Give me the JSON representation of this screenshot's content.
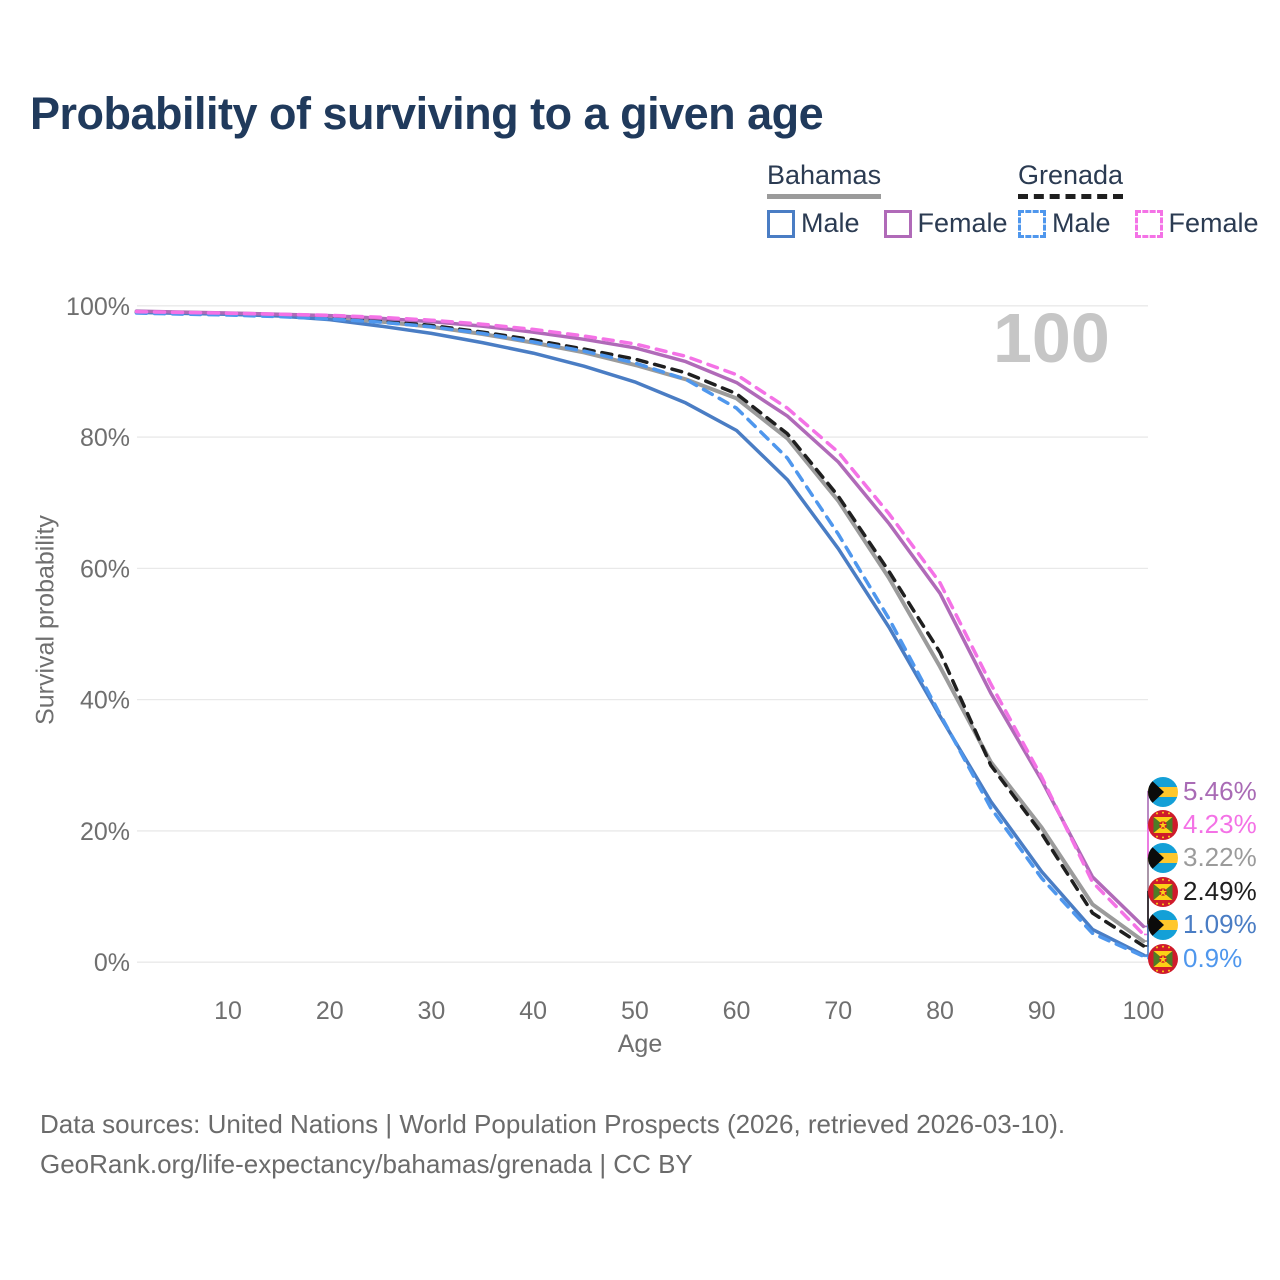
{
  "title": "Probability of surviving to a given age",
  "watermark": "100",
  "legend": {
    "groups": [
      {
        "country": "Bahamas",
        "line_style": "solid",
        "line_color": "#9b9b9b",
        "items": [
          {
            "label": "Male",
            "color": "#4a7dc4"
          },
          {
            "label": "Female",
            "color": "#b06ab8"
          }
        ]
      },
      {
        "country": "Grenada",
        "line_style": "dashed",
        "line_color": "#1f1f1f",
        "items": [
          {
            "label": "Male",
            "color": "#4f97ed"
          },
          {
            "label": "Female",
            "color": "#f472e6"
          }
        ]
      }
    ]
  },
  "chart_data": {
    "type": "line",
    "title": "Probability of surviving to a given age",
    "xlabel": "Age",
    "ylabel": "Survival probability",
    "xlim": [
      0,
      100
    ],
    "ylim": [
      0,
      100
    ],
    "grid": "horizontal",
    "x_ticks": [
      10,
      20,
      30,
      40,
      50,
      60,
      70,
      80,
      90,
      100
    ],
    "y_ticks": [
      0,
      20,
      40,
      60,
      80,
      100
    ],
    "y_tick_labels": [
      "0%",
      "20%",
      "40%",
      "60%",
      "80%",
      "100%"
    ],
    "x": [
      1,
      5,
      10,
      15,
      20,
      25,
      30,
      35,
      40,
      45,
      50,
      55,
      60,
      65,
      70,
      75,
      80,
      85,
      90,
      95,
      100
    ],
    "series": [
      {
        "key": "bahamas_total",
        "name": "Bahamas",
        "color": "#9b9b9b",
        "dashed": false,
        "width": 4,
        "values": [
          99.1,
          98.95,
          98.8,
          98.55,
          98.2,
          97.6,
          96.8,
          95.7,
          94.4,
          92.9,
          91.0,
          88.8,
          85.9,
          79.8,
          70.3,
          58.5,
          45.0,
          30.5,
          20.5,
          8.8,
          3.22
        ]
      },
      {
        "key": "grenada_total",
        "name": "Grenada",
        "color": "#1f1f1f",
        "dashed": true,
        "width": 3.5,
        "values": [
          99.0,
          98.85,
          98.7,
          98.5,
          98.25,
          97.8,
          97.0,
          96.0,
          94.8,
          93.4,
          91.9,
          89.8,
          86.6,
          80.5,
          71.0,
          59.5,
          47.2,
          30.0,
          19.6,
          7.5,
          2.49
        ]
      },
      {
        "key": "bahamas_male",
        "name": "Bahamas Male",
        "color": "#4a7dc4",
        "dashed": false,
        "width": 3.5,
        "values": [
          99.0,
          98.85,
          98.7,
          98.45,
          97.9,
          96.9,
          95.8,
          94.4,
          92.8,
          90.8,
          88.4,
          85.2,
          81.0,
          73.5,
          63.0,
          51.0,
          37.5,
          24.5,
          13.8,
          5.0,
          1.09
        ]
      },
      {
        "key": "grenada_male",
        "name": "Grenada Male",
        "color": "#4f97ed",
        "dashed": true,
        "width": 3.5,
        "values": [
          98.9,
          98.75,
          98.6,
          98.35,
          98.0,
          97.5,
          96.8,
          95.8,
          94.5,
          93.1,
          91.3,
          88.8,
          84.4,
          76.8,
          65.2,
          52.3,
          37.8,
          23.5,
          12.8,
          4.4,
          0.9
        ]
      },
      {
        "key": "bahamas_female",
        "name": "Bahamas Female",
        "color": "#b06ab8",
        "dashed": false,
        "width": 3.5,
        "values": [
          99.2,
          99.05,
          98.9,
          98.72,
          98.5,
          98.1,
          97.6,
          96.9,
          96.0,
          94.9,
          93.6,
          91.5,
          88.3,
          83.2,
          76.2,
          66.8,
          56.2,
          41.0,
          27.7,
          13.0,
          5.46
        ]
      },
      {
        "key": "grenada_female",
        "name": "Grenada Female",
        "color": "#f472e6",
        "dashed": true,
        "width": 3.5,
        "values": [
          99.1,
          99.0,
          98.88,
          98.72,
          98.55,
          98.25,
          97.8,
          97.2,
          96.4,
          95.4,
          94.2,
          92.3,
          89.5,
          84.4,
          77.7,
          68.3,
          57.8,
          42.4,
          28.2,
          12.2,
          4.23
        ]
      }
    ]
  },
  "end_labels": [
    {
      "value": "5.46%",
      "color": "#a96bb5",
      "flag": "bahamas",
      "series_key": "bahamas_female"
    },
    {
      "value": "4.23%",
      "color": "#f472e6",
      "flag": "grenada",
      "series_key": "grenada_female"
    },
    {
      "value": "3.22%",
      "color": "#9b9b9b",
      "flag": "bahamas",
      "series_key": "bahamas_total"
    },
    {
      "value": "2.49%",
      "color": "#1f1f1f",
      "flag": "grenada",
      "series_key": "grenada_total"
    },
    {
      "value": "1.09%",
      "color": "#4a7dc4",
      "flag": "bahamas",
      "series_key": "bahamas_male"
    },
    {
      "value": "0.9%",
      "color": "#4f97ed",
      "flag": "grenada",
      "series_key": "grenada_male"
    }
  ],
  "footer": {
    "line1": "Data sources: United Nations | World Population Prospects (2026, retrieved 2026-03-10).",
    "line2": "GeoRank.org/life-expectancy/bahamas/grenada | CC BY"
  }
}
